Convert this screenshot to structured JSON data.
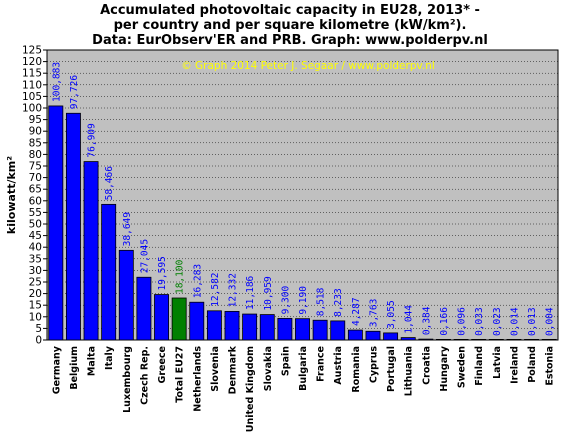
{
  "chart_data": {
    "type": "bar",
    "title": [
      "Accumulated photovoltaic capacity in EU28, 2013* -",
      "per country and per square kilometre (kW/km²).",
      "Data: EurObserv'ER and PRB. Graph: www.polderpv.nl"
    ],
    "watermark": "© Graph 2014 Peter J. Segaar / www.polderpv.nl",
    "ylabel": "kilowatt/km²",
    "xlabel": "",
    "ylim": [
      0,
      125
    ],
    "ytick_step": 5,
    "grid": true,
    "categories": [
      "Germany",
      "Belgium",
      "Malta",
      "Italy",
      "Luxembourg",
      "Czech Rep.",
      "Greece",
      "Total EU27",
      "Netherlands",
      "Slovenia",
      "Denmark",
      "United Kingdom",
      "Slovakia",
      "Spain",
      "Bulgaria",
      "France",
      "Austria",
      "Romania",
      "Cyprus",
      "Portugal",
      "Lithuania",
      "Croatia",
      "Hungary",
      "Sweden",
      "Finland",
      "Latvia",
      "Ireland",
      "Poland",
      "Estonia"
    ],
    "values": [
      100.883,
      97.726,
      76.909,
      58.466,
      38.649,
      27.045,
      19.595,
      18.1,
      16.283,
      12.582,
      12.332,
      11.186,
      10.959,
      9.3,
      9.19,
      8.518,
      8.233,
      4.287,
      3.763,
      3.055,
      1.044,
      0.384,
      0.166,
      0.096,
      0.033,
      0.023,
      0.014,
      0.013,
      0.004
    ],
    "value_labels": [
      "100,883",
      "97,726",
      "76,909",
      "58,466",
      "38,649",
      "27,045",
      "19,595",
      "18,100",
      "16,283",
      "12,582",
      "12,332",
      "11,186",
      "10,959",
      "9,300",
      "9,190",
      "8,518",
      "8,233",
      "4,287",
      "3,763",
      "3,055",
      "1,044",
      "0,384",
      "0,166",
      "0,096",
      "0,033",
      "0,023",
      "0,014",
      "0,013",
      "0,004"
    ],
    "highlight_index": 7,
    "colors": {
      "bar": "#0000ff",
      "highlight_bar": "#008000",
      "value_label": "#0000ff",
      "highlight_label": "#008000",
      "plot_background": "#c0c0c0",
      "watermark": "#ffff00"
    }
  }
}
